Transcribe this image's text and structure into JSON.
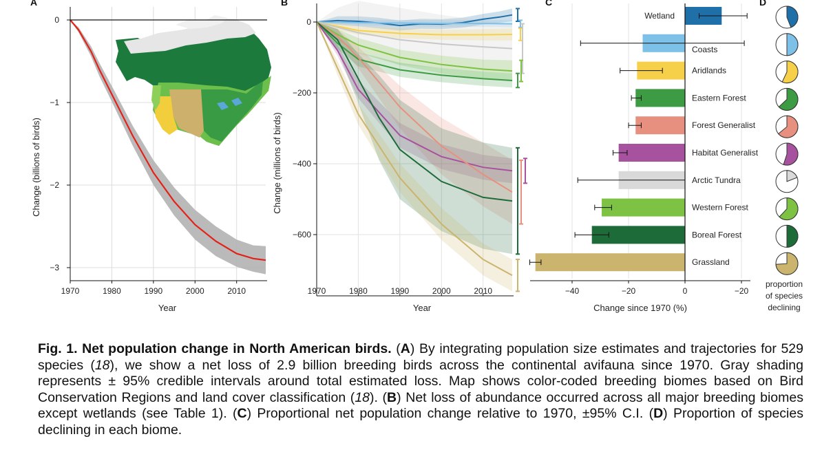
{
  "panels": {
    "A": {
      "label": "A",
      "xlabel": "Year",
      "ylabel": "Change (billions of birds)",
      "x_ticks": [
        "1970",
        "1980",
        "1990",
        "2000",
        "2010"
      ],
      "y_ticks": [
        "0",
        "−1",
        "−2",
        "−3"
      ]
    },
    "B": {
      "label": "B",
      "xlabel": "Year",
      "ylabel": "Change (millions of birds)",
      "x_ticks": [
        "1970",
        "1980",
        "1990",
        "2000",
        "2010"
      ],
      "y_ticks": [
        "0",
        "−200",
        "−400",
        "−600"
      ]
    },
    "C": {
      "label": "C",
      "xlabel": "Change since 1970 (%)",
      "x_ticks": [
        "−40",
        "−20",
        "0",
        "−20"
      ]
    },
    "D": {
      "label": "D",
      "footer": [
        "proportion",
        "of species",
        "declining"
      ]
    }
  },
  "chart_data": [
    {
      "type": "line",
      "panel": "A",
      "xlabel": "Year",
      "ylabel": "Change (billions of birds)",
      "xlim": [
        1970,
        2017
      ],
      "ylim": [
        -3.1,
        0.1
      ],
      "series": [
        {
          "color": "#e2231a",
          "band_color": "#b3b3b3",
          "x": [
            1970,
            1972,
            1975,
            1977,
            1980,
            1985,
            1990,
            1995,
            2000,
            2005,
            2010,
            2014,
            2017
          ],
          "y": [
            0,
            -0.12,
            -0.38,
            -0.6,
            -0.9,
            -1.4,
            -1.85,
            -2.2,
            -2.48,
            -2.68,
            -2.83,
            -2.89,
            -2.91
          ],
          "lower": [
            0,
            -0.15,
            -0.44,
            -0.68,
            -0.99,
            -1.52,
            -2.0,
            -2.37,
            -2.66,
            -2.86,
            -2.99,
            -3.05,
            -3.08
          ],
          "upper": [
            0,
            -0.09,
            -0.32,
            -0.52,
            -0.8,
            -1.28,
            -1.7,
            -2.03,
            -2.3,
            -2.5,
            -2.66,
            -2.73,
            -2.74
          ]
        }
      ]
    },
    {
      "type": "line",
      "panel": "B",
      "xlabel": "Year",
      "ylabel": "Change (millions of birds)",
      "xlim": [
        1970,
        2017
      ],
      "ylim": [
        -740,
        30
      ],
      "series": [
        {
          "color": "#1f6fa8",
          "x": [
            1970,
            1975,
            1980,
            1985,
            1990,
            1995,
            2000,
            2005,
            2010,
            2014,
            2017
          ],
          "y": [
            0,
            4,
            2,
            -3,
            -10,
            -5,
            -6,
            -2,
            8,
            14,
            20
          ],
          "lower": [
            0,
            -8,
            -12,
            -18,
            -24,
            -19,
            -20,
            -16,
            -7,
            -2,
            2
          ],
          "upper": [
            0,
            16,
            16,
            12,
            4,
            9,
            8,
            12,
            23,
            30,
            38
          ]
        },
        {
          "color": "#7ec1e8",
          "x": [
            1970,
            1980,
            1990,
            2000,
            2010,
            2017
          ],
          "y": [
            0,
            -2,
            -3,
            -4,
            -4,
            -5
          ],
          "lower": [
            0,
            -10,
            -12,
            -13,
            -14,
            -15
          ],
          "upper": [
            0,
            6,
            6,
            5,
            6,
            5
          ]
        },
        {
          "color": "#f7d04a",
          "x": [
            1970,
            1975,
            1980,
            1990,
            2000,
            2010,
            2017
          ],
          "y": [
            0,
            -12,
            -24,
            -32,
            -36,
            -36,
            -35
          ],
          "lower": [
            0,
            -22,
            -36,
            -46,
            -50,
            -52,
            -52
          ],
          "upper": [
            0,
            -2,
            -12,
            -18,
            -22,
            -20,
            -18
          ]
        },
        {
          "color": "#c8c8c8",
          "x": [
            1970,
            1975,
            1980,
            1990,
            2000,
            2010,
            2017
          ],
          "y": [
            0,
            -15,
            -30,
            -50,
            -62,
            -70,
            -75
          ],
          "lower": [
            0,
            -50,
            -90,
            -120,
            -130,
            -140,
            -145
          ],
          "upper": [
            0,
            40,
            60,
            40,
            20,
            5,
            -5
          ]
        },
        {
          "color": "#7dc242",
          "x": [
            1970,
            1975,
            1980,
            1990,
            2000,
            2010,
            2017
          ],
          "y": [
            0,
            -35,
            -65,
            -100,
            -120,
            -133,
            -138
          ],
          "lower": [
            0,
            -50,
            -85,
            -122,
            -145,
            -160,
            -168
          ],
          "upper": [
            0,
            -20,
            -45,
            -78,
            -95,
            -106,
            -108
          ]
        },
        {
          "color": "#3d9b43",
          "x": [
            1970,
            1975,
            1980,
            1990,
            2000,
            2010,
            2017
          ],
          "y": [
            0,
            -60,
            -105,
            -135,
            -150,
            -160,
            -165
          ],
          "lower": [
            0,
            -75,
            -125,
            -155,
            -170,
            -180,
            -185
          ],
          "upper": [
            0,
            -45,
            -85,
            -115,
            -130,
            -140,
            -145
          ]
        },
        {
          "color": "#a6529e",
          "x": [
            1970,
            1975,
            1980,
            1990,
            2000,
            2010,
            2017
          ],
          "y": [
            0,
            -80,
            -190,
            -320,
            -380,
            -410,
            -420
          ],
          "lower": [
            0,
            -95,
            -215,
            -355,
            -415,
            -445,
            -455
          ],
          "upper": [
            0,
            -65,
            -165,
            -285,
            -345,
            -375,
            -385
          ]
        },
        {
          "color": "#e8907f",
          "x": [
            1970,
            1975,
            1980,
            1990,
            2000,
            2010,
            2017
          ],
          "y": [
            0,
            -40,
            -100,
            -240,
            -350,
            -430,
            -480
          ],
          "lower": [
            0,
            -60,
            -130,
            -300,
            -430,
            -520,
            -570
          ],
          "upper": [
            0,
            -20,
            -70,
            -180,
            -270,
            -340,
            -390
          ]
        },
        {
          "color": "#1e6b3a",
          "x": [
            1970,
            1975,
            1980,
            1985,
            1990,
            2000,
            2010,
            2017
          ],
          "y": [
            0,
            -50,
            -160,
            -270,
            -360,
            -450,
            -495,
            -505
          ],
          "lower": [
            0,
            -80,
            -230,
            -390,
            -500,
            -590,
            -640,
            -655
          ],
          "upper": [
            0,
            -20,
            -90,
            -150,
            -220,
            -300,
            -340,
            -355
          ]
        },
        {
          "color": "#cbb46e",
          "x": [
            1970,
            1975,
            1980,
            1990,
            2000,
            2010,
            2017
          ],
          "y": [
            0,
            -130,
            -260,
            -440,
            -570,
            -670,
            -715
          ],
          "lower": [
            0,
            -150,
            -290,
            -480,
            -615,
            -715,
            -760
          ],
          "upper": [
            0,
            -110,
            -230,
            -400,
            -525,
            -625,
            -670
          ]
        }
      ]
    },
    {
      "type": "bar",
      "panel": "C",
      "xlabel": "Change since 1970 (%)",
      "xlim": [
        -53,
        23
      ],
      "categories": [
        "Wetland",
        "Coasts",
        "Aridlands",
        "Eastern Forest",
        "Forest Generalist",
        "Habitat Generalist",
        "Arctic Tundra",
        "Western Forest",
        "Boreal Forest",
        "Grassland"
      ],
      "values": [
        13,
        -15,
        -17,
        -17.5,
        -17.5,
        -23.5,
        -23.5,
        -29.5,
        -33,
        -53
      ],
      "ci_low": [
        5,
        -37,
        -23,
        -19,
        -20,
        -25.5,
        -38,
        -32,
        -39,
        -55
      ],
      "ci_high": [
        22,
        21,
        -8,
        -15.5,
        -15.5,
        -20.5,
        0,
        -26,
        -27,
        -51
      ],
      "colors": [
        "#1f6fa8",
        "#7ec1e8",
        "#f7d04a",
        "#3d9b43",
        "#e8907f",
        "#a6529e",
        "#d9d9d9",
        "#7dc242",
        "#1e6b3a",
        "#cbb46e"
      ]
    },
    {
      "type": "pie",
      "panel": "D",
      "categories": [
        "Wetland",
        "Coasts",
        "Aridlands",
        "Eastern Forest",
        "Forest Generalist",
        "Habitat Generalist",
        "Arctic Tundra",
        "Western Forest",
        "Boreal Forest",
        "Grassland"
      ],
      "values": [
        0.44,
        0.5,
        0.57,
        0.63,
        0.64,
        0.55,
        0.19,
        0.62,
        0.5,
        0.74
      ],
      "colors": [
        "#1f6fa8",
        "#7ec1e8",
        "#f7d04a",
        "#3d9b43",
        "#e8907f",
        "#a6529e",
        "#d9d9d9",
        "#7dc242",
        "#1e6b3a",
        "#cbb46e"
      ]
    }
  ],
  "caption": {
    "title": "Fig. 1. Net population change in North American birds.",
    "s1": " (",
    "pa": "A",
    "s2": ") By integrating population size estimates and trajectories for 529 species (",
    "r1": "18",
    "s3": "), we show a net loss of 2.9 billion breeding birds across the continental avifauna since 1970. Gray shading represents ± 95% credible intervals around total estimated loss. Map shows color-coded breeding biomes based on Bird Conservation Regions and land cover classification (",
    "r2": "18",
    "s4": "). (",
    "pb": "B",
    "s5": ") Net loss of abundance occurred across all major breeding biomes except wetlands (see Table 1). (",
    "pc": "C",
    "s6": ") Proportional net population change relative to 1970, ±95% C.I. (",
    "pd": "D",
    "s7": ") Proportion of species declining in each biome."
  }
}
